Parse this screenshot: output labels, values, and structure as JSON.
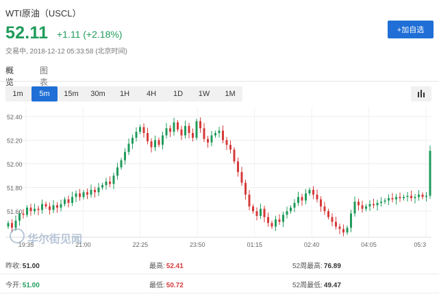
{
  "header": {
    "title": "WTI原油（USCL）",
    "price": "52.11",
    "change": "+1.11 (+2.18%)",
    "status": "交易中, 2018-12-12 05:33:58 (北京时间)",
    "add_button": "+加自选"
  },
  "view_tabs": [
    {
      "label": "概览",
      "active": true
    },
    {
      "label": "图表",
      "active": false
    }
  ],
  "periods": [
    {
      "label": "1m",
      "active": false
    },
    {
      "label": "5m",
      "active": true
    },
    {
      "label": "15m",
      "active": false
    },
    {
      "label": "30m",
      "active": false
    },
    {
      "label": "1H",
      "active": false
    },
    {
      "label": "4H",
      "active": false
    },
    {
      "label": "1D",
      "active": false
    },
    {
      "label": "1W",
      "active": false
    },
    {
      "label": "1M",
      "active": false
    }
  ],
  "chart_type_icon": "bar-chart-icon",
  "watermark": "华尔街见闻",
  "colors": {
    "up": "#1f9b5b",
    "down": "#d63a3a",
    "accent": "#1f6fd6"
  },
  "chart_data": {
    "type": "candlestick",
    "y_ticks": [
      "52.40",
      "52.20",
      "52.00",
      "51.80",
      "51.60"
    ],
    "y_tick_values": [
      52.4,
      52.2,
      52.0,
      51.8,
      51.6
    ],
    "ylim": [
      51.38,
      52.48
    ],
    "x_ticks": [
      "19:35",
      "21:00",
      "22:25",
      "23:50",
      "01:15",
      "02:40",
      "04:05",
      "05:3"
    ],
    "grid": true,
    "closes": [
      51.5,
      51.46,
      51.52,
      51.58,
      51.57,
      51.63,
      51.6,
      51.62,
      51.61,
      51.66,
      51.64,
      51.61,
      51.65,
      51.63,
      51.66,
      51.7,
      51.67,
      51.72,
      51.75,
      51.72,
      51.76,
      51.74,
      51.78,
      51.76,
      51.8,
      51.82,
      51.85,
      51.83,
      51.9,
      51.97,
      52.03,
      52.1,
      52.17,
      52.22,
      52.27,
      52.31,
      52.26,
      52.19,
      52.14,
      52.2,
      52.16,
      52.24,
      52.3,
      52.27,
      52.35,
      52.29,
      52.24,
      52.32,
      52.26,
      52.22,
      52.36,
      52.3,
      52.21,
      52.18,
      52.24,
      52.26,
      52.28,
      52.2,
      52.16,
      52.12,
      52.02,
      51.93,
      51.84,
      51.74,
      51.64,
      51.6,
      51.56,
      51.62,
      51.55,
      51.5,
      51.47,
      51.53,
      51.51,
      51.57,
      51.6,
      51.63,
      51.67,
      51.72,
      51.69,
      51.75,
      51.78,
      51.74,
      51.7,
      51.64,
      51.6,
      51.55,
      51.51,
      51.47,
      51.45,
      51.42,
      51.46,
      51.58,
      51.68,
      51.65,
      51.62,
      51.64,
      51.66,
      51.65,
      51.67,
      51.68,
      51.69,
      51.71,
      51.7,
      51.72,
      51.71,
      51.72,
      51.73,
      51.71,
      51.72,
      51.74,
      51.72,
      51.73,
      52.11
    ]
  },
  "stats": [
    [
      {
        "label": "昨收:",
        "value": "51.00",
        "tone": "dark"
      },
      {
        "label": "最高:",
        "value": "52.41",
        "tone": "red"
      },
      {
        "label": "52周最高:",
        "value": "76.89",
        "tone": "dark"
      }
    ],
    [
      {
        "label": "今开:",
        "value": "51.00",
        "tone": "green"
      },
      {
        "label": "最低:",
        "value": "50.72",
        "tone": "red"
      },
      {
        "label": "52周最低:",
        "value": "49.47",
        "tone": "dark"
      }
    ]
  ]
}
